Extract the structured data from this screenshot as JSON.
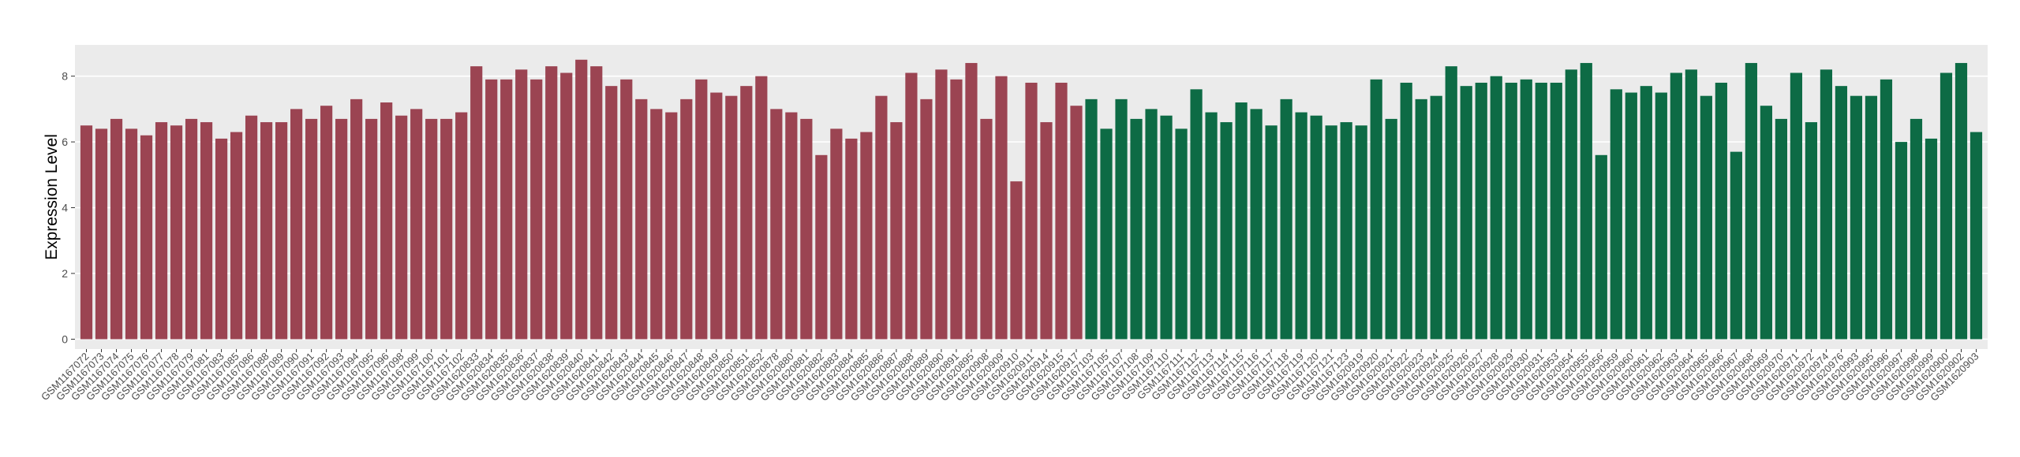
{
  "chart_data": {
    "type": "bar",
    "y_label": "Expression Level",
    "ylim": [
      -0.3,
      8.95
    ],
    "yticks": [
      0,
      2,
      4,
      6,
      8
    ],
    "grid": true,
    "series": [
      {
        "color": "#9b4452",
        "categories": [
          "GSM1167072",
          "GSM1167073",
          "GSM1167074",
          "GSM1167075",
          "GSM1167076",
          "GSM1167077",
          "GSM1167078",
          "GSM1167079",
          "GSM1167081",
          "GSM1167083",
          "GSM1167085",
          "GSM1167086",
          "GSM1167088",
          "GSM1167089",
          "GSM1167090",
          "GSM1167091",
          "GSM1167092",
          "GSM1167093",
          "GSM1167094",
          "GSM1167095",
          "GSM1167096",
          "GSM1167098",
          "GSM1167099",
          "GSM1167100",
          "GSM1167101",
          "GSM1167102",
          "GSM1620833",
          "GSM1620834",
          "GSM1620835",
          "GSM1620836",
          "GSM1620837",
          "GSM1620838",
          "GSM1620839",
          "GSM1620840",
          "GSM1620841",
          "GSM1620842",
          "GSM1620843",
          "GSM1620844",
          "GSM1620845",
          "GSM1620846",
          "GSM1620847",
          "GSM1620848",
          "GSM1620849",
          "GSM1620850",
          "GSM1620851",
          "GSM1620852",
          "GSM1620878",
          "GSM1620880",
          "GSM1620881",
          "GSM1620882",
          "GSM1620883",
          "GSM1620884",
          "GSM1620885",
          "GSM1620886",
          "GSM1620887",
          "GSM1620888",
          "GSM1620889",
          "GSM1620890",
          "GSM1620891",
          "GSM1620895",
          "GSM1620908",
          "GSM1620909",
          "GSM1620910",
          "GSM1620911",
          "GSM1620914",
          "GSM1620915",
          "GSM1620917"
        ],
        "values": [
          6.5,
          6.4,
          6.7,
          6.4,
          6.2,
          6.6,
          6.5,
          6.7,
          6.6,
          6.1,
          6.3,
          6.8,
          6.6,
          6.6,
          7.0,
          6.7,
          7.1,
          6.7,
          7.3,
          6.7,
          7.2,
          6.8,
          7.0,
          6.7,
          6.7,
          6.9,
          8.3,
          7.9,
          7.9,
          8.2,
          7.9,
          8.3,
          8.1,
          8.5,
          8.3,
          7.7,
          7.9,
          7.3,
          7.0,
          6.9,
          7.3,
          7.9,
          7.5,
          7.4,
          7.7,
          8.0,
          7.0,
          6.9,
          6.7,
          5.6,
          6.4,
          6.1,
          6.3,
          7.4,
          6.6,
          8.1,
          7.3,
          8.2,
          7.9,
          8.4,
          6.7,
          8.0,
          4.8,
          7.8,
          6.6,
          7.8,
          7.1
        ]
      },
      {
        "color": "#0d6b45",
        "categories": [
          "GSM1167103",
          "GSM1167105",
          "GSM1167107",
          "GSM1167108",
          "GSM1167109",
          "GSM1167110",
          "GSM1167111",
          "GSM1167112",
          "GSM1167113",
          "GSM1167114",
          "GSM1167115",
          "GSM1167116",
          "GSM1167117",
          "GSM1167118",
          "GSM1167119",
          "GSM1167120",
          "GSM1167121",
          "GSM1167123",
          "GSM1620919",
          "GSM1620920",
          "GSM1620921",
          "GSM1620922",
          "GSM1620923",
          "GSM1620924",
          "GSM1620925",
          "GSM1620926",
          "GSM1620927",
          "GSM1620928",
          "GSM1620929",
          "GSM1620930",
          "GSM1620931",
          "GSM1620953",
          "GSM1620954",
          "GSM1620955",
          "GSM1620956",
          "GSM1620959",
          "GSM1620960",
          "GSM1620961",
          "GSM1620962",
          "GSM1620963",
          "GSM1620964",
          "GSM1620965",
          "GSM1620966",
          "GSM1620967",
          "GSM1620968",
          "GSM1620969",
          "GSM1620970",
          "GSM1620971",
          "GSM1620972",
          "GSM1620974",
          "GSM1620976",
          "GSM1620993",
          "GSM1620995",
          "GSM1620996",
          "GSM1620997",
          "GSM1620998",
          "GSM1620999",
          "GSM1620900",
          "GSM1620902",
          "GSM1620903"
        ],
        "values": [
          7.3,
          6.4,
          7.3,
          6.7,
          7.0,
          6.8,
          6.4,
          7.6,
          6.9,
          6.6,
          7.2,
          7.0,
          6.5,
          7.3,
          6.9,
          6.8,
          6.5,
          6.6,
          6.5,
          7.9,
          6.7,
          7.8,
          7.3,
          7.4,
          8.3,
          7.7,
          7.8,
          8.0,
          7.8,
          7.9,
          7.8,
          7.8,
          8.2,
          8.4,
          5.6,
          7.6,
          7.5,
          7.7,
          7.5,
          8.1,
          8.2,
          7.4,
          7.8,
          5.7,
          8.4,
          7.1,
          6.7,
          8.1,
          6.6,
          8.2,
          7.7,
          7.4,
          7.4,
          7.9,
          6.0,
          6.7,
          6.1,
          8.1,
          8.4,
          6.3
        ]
      }
    ]
  }
}
